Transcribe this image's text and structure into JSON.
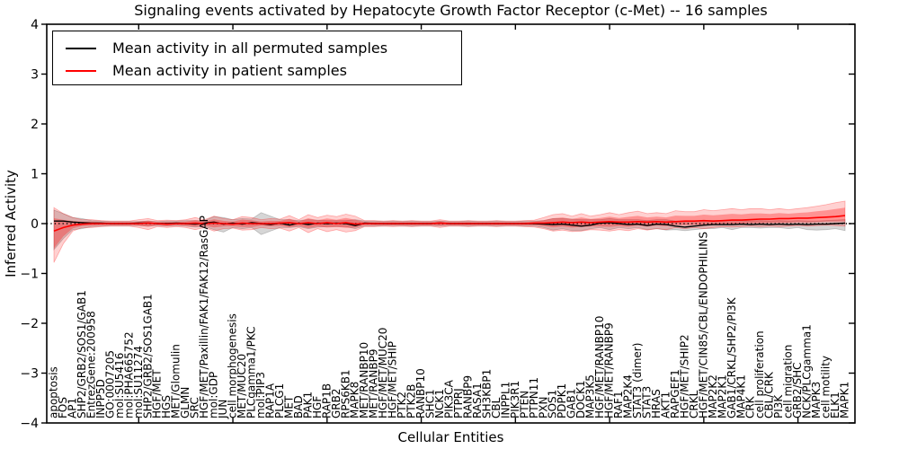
{
  "figure": {
    "background": "#ffffff"
  },
  "chart_data": {
    "type": "line",
    "title": "Signaling events activated by Hepatocyte Growth Factor Receptor (c-Met) -- 16 samples",
    "xlabel": "Cellular Entities",
    "ylabel": "Inferred Activity",
    "ylim": [
      -4,
      4
    ],
    "y_ticks": [
      4,
      3,
      2,
      1,
      0,
      -1,
      -2,
      -3,
      -4
    ],
    "x_tick_interval": 10,
    "grid": false,
    "legend_position": "upper left",
    "zero_line": {
      "style": "dotted",
      "color": "#000000",
      "value": 0
    },
    "categories": [
      "apoptosis",
      "FOS",
      "AP1",
      "SHP2/GRB2/SOS1/GAB1",
      "EntrezGene:200958",
      "INPP5D",
      "GO:0007205",
      "mol:SU5416",
      "mol:PHA665752",
      "mol:SU11274",
      "SHP2/GRB2/SOS1GAB1",
      "HGF/MET",
      "HGS",
      "MET/Glomulin",
      "GLMN",
      "SRC",
      "HGF/MET/Paxillin/FAK1/FAK12/RasGAP",
      "mol:GDP",
      "JUN",
      "cell morphogenesis",
      "MET/MUC20",
      "PLCgamma1/PKC",
      "mol:PIP3",
      "RAP1A",
      "PLCG1",
      "MET",
      "BAD",
      "PAK1",
      "HGF",
      "RAP1B",
      "GRB2",
      "RPS6KB1",
      "MAPK8",
      "MET/RANBP10",
      "MET/RANBP9",
      "HGF/MET/MUC20",
      "HGF/MET/SHIP",
      "PTK2",
      "PTK2B",
      "RANBP10",
      "SHC1",
      "NCK1",
      "PIK3CA",
      "PTPRJ",
      "RANBP9",
      "RASA1",
      "SH3KBP1",
      "CBL",
      "INPPL1",
      "PIK3R1",
      "PTEN",
      "PTPN11",
      "PXN",
      "SOS1",
      "PDPK1",
      "GAB1",
      "DOCK1",
      "MAP3K5",
      "HGF/MET/RANBP10",
      "HGF/MET/RANBP9",
      "RAF1",
      "MAP2K4",
      "STAT3 (dimer)",
      "STAT3",
      "HRAS",
      "AKT1",
      "RAPGEF1",
      "HGF/MET/SHIP2",
      "CRKL",
      "HGF/MET/CIN85/CBL/ENDOPHILINS",
      "MAP2K2",
      "MAP2K1",
      "GAB1/CRKL/SHP2/PI3K",
      "MAP4K1",
      "CRK",
      "cell proliferation",
      "CBL/CRK",
      "PI3K",
      "cell migration",
      "GRB2/SHC",
      "NCK/PLCgamma1",
      "MAPK3",
      "cell motility",
      "ELK1",
      "MAPK1"
    ],
    "series": [
      {
        "name": "Mean activity in all permuted samples",
        "color": "#000000",
        "band_color": "#808080",
        "mean": [
          0.05,
          0.05,
          0.03,
          0.02,
          0.01,
          0.01,
          0,
          0,
          0,
          0.01,
          0.01,
          0,
          0,
          0.01,
          0,
          -0.01,
          0.01,
          0.03,
          -0.01,
          0.01,
          -0.01,
          0.02,
          0,
          -0.02,
          0.01,
          -0.03,
          0.01,
          -0.02,
          0.01,
          0,
          0.01,
          0,
          -0.04,
          0.01,
          0,
          0,
          0,
          0,
          0,
          0,
          0,
          0.01,
          0,
          0,
          0,
          0,
          0,
          0,
          0,
          0,
          0,
          0,
          -0.01,
          -0.02,
          -0.01,
          -0.03,
          -0.05,
          -0.03,
          0.01,
          0.02,
          0,
          -0.02,
          -0.01,
          -0.04,
          -0.01,
          -0.02,
          -0.05,
          -0.07,
          -0.05,
          -0.03,
          -0.02,
          -0.02,
          -0.02,
          -0.01,
          -0.02,
          -0.01,
          -0.02,
          -0.01,
          -0.02,
          -0.01,
          -0.02,
          -0.01,
          -0.01,
          0,
          0.01
        ],
        "band_lo": [
          -0.52,
          -0.3,
          -0.12,
          -0.1,
          -0.06,
          -0.05,
          -0.04,
          -0.04,
          -0.04,
          -0.04,
          -0.05,
          -0.04,
          -0.05,
          -0.04,
          -0.05,
          -0.07,
          -0.06,
          -0.12,
          -0.17,
          -0.08,
          -0.1,
          -0.08,
          -0.22,
          -0.15,
          -0.08,
          -0.08,
          -0.06,
          -0.1,
          -0.07,
          -0.06,
          -0.06,
          -0.06,
          -0.1,
          -0.05,
          -0.05,
          -0.04,
          -0.04,
          -0.04,
          -0.05,
          -0.04,
          -0.04,
          -0.05,
          -0.04,
          -0.04,
          -0.05,
          -0.04,
          -0.04,
          -0.05,
          -0.04,
          -0.04,
          -0.05,
          -0.05,
          -0.08,
          -0.13,
          -0.1,
          -0.14,
          -0.14,
          -0.1,
          -0.08,
          -0.12,
          -0.08,
          -0.1,
          -0.08,
          -0.12,
          -0.1,
          -0.13,
          -0.12,
          -0.14,
          -0.12,
          -0.1,
          -0.1,
          -0.08,
          -0.12,
          -0.08,
          -0.08,
          -0.09,
          -0.08,
          -0.08,
          -0.1,
          -0.08,
          -0.12,
          -0.13,
          -0.12,
          -0.1,
          -0.14
        ],
        "band_hi": [
          0.27,
          0.2,
          0.12,
          0.1,
          0.06,
          0.05,
          0.04,
          0.04,
          0.04,
          0.04,
          0.05,
          0.04,
          0.05,
          0.05,
          0.06,
          0.06,
          0.06,
          0.14,
          0.12,
          0.08,
          0.1,
          0.09,
          0.22,
          0.15,
          0.08,
          0.08,
          0.06,
          0.08,
          0.07,
          0.06,
          0.06,
          0.06,
          0.08,
          0.05,
          0.05,
          0.04,
          0.05,
          0.04,
          0.05,
          0.04,
          0.04,
          0.05,
          0.04,
          0.04,
          0.05,
          0.04,
          0.04,
          0.05,
          0.04,
          0.04,
          0.05,
          0.05,
          0.06,
          0.1,
          0.1,
          0.09,
          0.08,
          0.08,
          0.08,
          0.1,
          0.08,
          0.08,
          0.08,
          0.06,
          0.08,
          0.08,
          0.05,
          0.04,
          0.05,
          0.06,
          0.06,
          0.06,
          0.06,
          0.06,
          0.05,
          0.06,
          0.05,
          0.06,
          0.05,
          0.06,
          0.05,
          0.05,
          0.06,
          0.07,
          0.08
        ]
      },
      {
        "name": "Mean activity in patient samples",
        "color": "#ff0000",
        "band_color": "#ff0000",
        "mean": [
          -0.15,
          -0.08,
          -0.03,
          -0.01,
          0,
          0,
          0,
          0,
          0,
          0,
          0.01,
          0,
          -0.01,
          0,
          0,
          0.01,
          0,
          0.01,
          0,
          -0.01,
          0.01,
          0,
          0,
          0,
          0.01,
          0.02,
          0,
          0.02,
          0,
          0.02,
          0,
          0.02,
          -0.01,
          0,
          0,
          0,
          0,
          0,
          0,
          0,
          0,
          0.01,
          0,
          0,
          0,
          0,
          0,
          0,
          0,
          0,
          0,
          0.01,
          0.01,
          0.02,
          0.03,
          0.02,
          0.03,
          0.02,
          0.03,
          0.04,
          0.03,
          0.03,
          0.04,
          0.03,
          0.04,
          0.03,
          0.04,
          0.05,
          0.05,
          0.06,
          0.05,
          0.06,
          0.07,
          0.07,
          0.08,
          0.09,
          0.09,
          0.1,
          0.1,
          0.11,
          0.11,
          0.12,
          0.13,
          0.14,
          0.16
        ],
        "band_lo": [
          -0.78,
          -0.4,
          -0.15,
          -0.08,
          -0.08,
          -0.06,
          -0.05,
          -0.05,
          -0.05,
          -0.08,
          -0.12,
          -0.06,
          -0.08,
          -0.06,
          -0.08,
          -0.12,
          -0.08,
          -0.15,
          -0.1,
          -0.09,
          -0.13,
          -0.12,
          -0.08,
          -0.1,
          -0.09,
          -0.15,
          -0.08,
          -0.18,
          -0.1,
          -0.16,
          -0.12,
          -0.17,
          -0.14,
          -0.06,
          -0.06,
          -0.05,
          -0.06,
          -0.05,
          -0.06,
          -0.05,
          -0.05,
          -0.08,
          -0.05,
          -0.05,
          -0.06,
          -0.05,
          -0.05,
          -0.06,
          -0.05,
          -0.05,
          -0.06,
          -0.07,
          -0.1,
          -0.15,
          -0.13,
          -0.16,
          -0.15,
          -0.12,
          -0.13,
          -0.15,
          -0.12,
          -0.14,
          -0.1,
          -0.13,
          -0.1,
          -0.12,
          -0.08,
          -0.1,
          -0.08,
          -0.1,
          -0.08,
          -0.06,
          -0.07,
          -0.06,
          -0.05,
          -0.06,
          -0.05,
          -0.06,
          -0.05,
          -0.04,
          -0.05,
          -0.04,
          -0.03,
          -0.04,
          -0.05
        ],
        "band_hi": [
          0.32,
          0.2,
          0.12,
          0.08,
          0.08,
          0.06,
          0.05,
          0.05,
          0.05,
          0.08,
          0.1,
          0.06,
          0.07,
          0.06,
          0.08,
          0.12,
          0.08,
          0.15,
          0.1,
          0.08,
          0.14,
          0.12,
          0.08,
          0.1,
          0.09,
          0.16,
          0.08,
          0.18,
          0.12,
          0.17,
          0.14,
          0.19,
          0.15,
          0.06,
          0.06,
          0.05,
          0.06,
          0.05,
          0.06,
          0.05,
          0.05,
          0.08,
          0.05,
          0.05,
          0.06,
          0.05,
          0.05,
          0.06,
          0.05,
          0.05,
          0.06,
          0.07,
          0.12,
          0.18,
          0.2,
          0.15,
          0.2,
          0.15,
          0.18,
          0.22,
          0.18,
          0.22,
          0.25,
          0.2,
          0.22,
          0.2,
          0.26,
          0.24,
          0.24,
          0.28,
          0.26,
          0.28,
          0.3,
          0.28,
          0.3,
          0.3,
          0.28,
          0.3,
          0.28,
          0.3,
          0.32,
          0.35,
          0.38,
          0.42,
          0.45
        ]
      }
    ]
  }
}
